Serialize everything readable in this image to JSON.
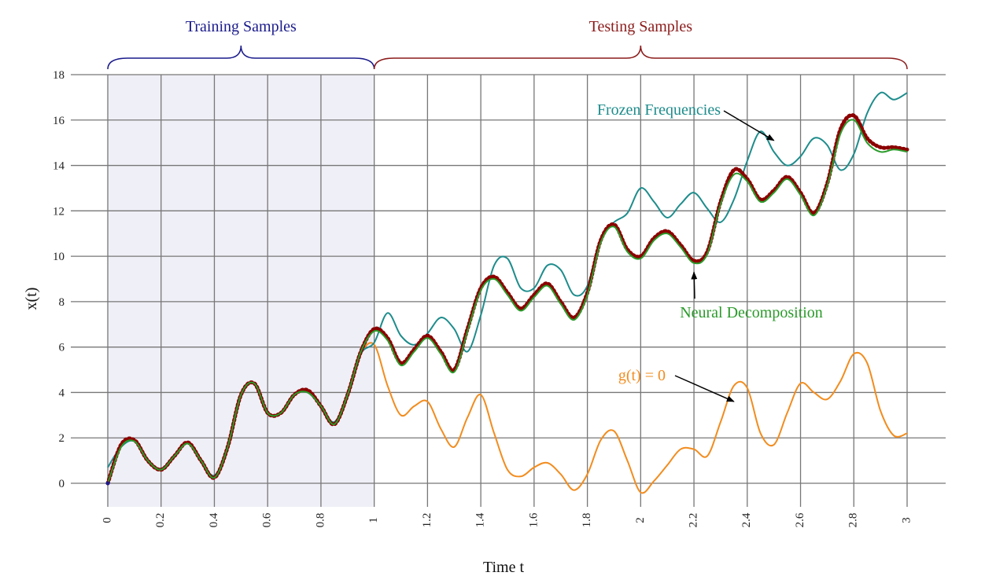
{
  "chart_data": {
    "type": "line",
    "xlabel": "Time t",
    "ylabel": "x(t)",
    "xlim": [
      0,
      3
    ],
    "ylim": [
      -1,
      18
    ],
    "x_ticks": [
      0,
      0.2,
      0.4,
      0.6,
      0.8,
      1,
      1.2,
      1.4,
      1.6,
      1.8,
      2,
      2.2,
      2.4,
      2.6,
      2.8,
      3
    ],
    "y_ticks": [
      0,
      2,
      4,
      6,
      8,
      10,
      12,
      14,
      16,
      18
    ],
    "grid": true,
    "regions": [
      {
        "label": "Training Samples",
        "x": [
          0,
          1
        ],
        "shaded": true,
        "color": "#1a1a8c"
      },
      {
        "label": "Testing Samples",
        "x": [
          1,
          3
        ],
        "shaded": false,
        "color": "#8b1a1a"
      }
    ],
    "annotations": [
      {
        "text": "Frozen Frequencies",
        "color": "#1e8c8c",
        "points_to": [
          2.5,
          15.1
        ]
      },
      {
        "text": "Neural Decomposition",
        "color": "#2a9a2a",
        "points_to": [
          2.2,
          9.3
        ]
      },
      {
        "text": "g(t) = 0",
        "color": "#f28c1e",
        "points_to": [
          2.35,
          3.6
        ]
      }
    ],
    "series": [
      {
        "role": "ground truth (dotted)",
        "color": "#8b0000",
        "x": [
          0,
          0.05,
          0.1,
          0.15,
          0.2,
          0.25,
          0.3,
          0.35,
          0.4,
          0.45,
          0.5,
          0.55,
          0.6,
          0.65,
          0.7,
          0.75,
          0.8,
          0.85,
          0.9,
          0.95,
          1,
          1.05,
          1.1,
          1.15,
          1.2,
          1.25,
          1.3,
          1.35,
          1.4,
          1.45,
          1.5,
          1.55,
          1.6,
          1.65,
          1.7,
          1.75,
          1.8,
          1.85,
          1.9,
          1.95,
          2,
          2.05,
          2.1,
          2.15,
          2.2,
          2.25,
          2.3,
          2.35,
          2.4,
          2.45,
          2.5,
          2.55,
          2.6,
          2.65,
          2.7,
          2.75,
          2.8,
          2.85,
          2.9,
          2.95,
          3
        ],
        "values": [
          0.0,
          1.7,
          1.9,
          1.0,
          0.6,
          1.2,
          1.8,
          1.0,
          0.25,
          1.6,
          3.9,
          4.4,
          3.1,
          3.1,
          3.9,
          4.1,
          3.4,
          2.6,
          3.9,
          5.8,
          6.8,
          6.4,
          5.3,
          5.9,
          6.5,
          5.8,
          5.0,
          6.8,
          8.6,
          9.1,
          8.4,
          7.7,
          8.3,
          8.8,
          8.0,
          7.3,
          8.4,
          10.7,
          11.4,
          10.3,
          10.0,
          10.8,
          11.1,
          10.5,
          9.8,
          10.2,
          12.4,
          13.8,
          13.4,
          12.5,
          12.9,
          13.5,
          12.8,
          11.9,
          13.2,
          15.6,
          16.2,
          15.2,
          14.8,
          14.8,
          14.7
        ]
      },
      {
        "name": "Neural Decomposition",
        "color": "#2a9a2a",
        "x": [
          0,
          0.05,
          0.1,
          0.15,
          0.2,
          0.25,
          0.3,
          0.35,
          0.4,
          0.45,
          0.5,
          0.55,
          0.6,
          0.65,
          0.7,
          0.75,
          0.8,
          0.85,
          0.9,
          0.95,
          1,
          1.05,
          1.1,
          1.15,
          1.2,
          1.25,
          1.3,
          1.35,
          1.4,
          1.45,
          1.5,
          1.55,
          1.6,
          1.65,
          1.7,
          1.75,
          1.8,
          1.85,
          1.9,
          1.95,
          2,
          2.05,
          2.1,
          2.15,
          2.2,
          2.25,
          2.3,
          2.35,
          2.4,
          2.45,
          2.5,
          2.55,
          2.6,
          2.65,
          2.7,
          2.75,
          2.8,
          2.85,
          2.9,
          2.95,
          3
        ],
        "values": [
          0.0,
          1.6,
          1.85,
          1.0,
          0.6,
          1.2,
          1.75,
          1.0,
          0.25,
          1.6,
          3.9,
          4.4,
          3.1,
          3.1,
          3.9,
          4.0,
          3.4,
          2.6,
          3.9,
          5.8,
          6.7,
          6.3,
          5.2,
          5.8,
          6.4,
          5.7,
          4.9,
          6.7,
          8.5,
          9.0,
          8.3,
          7.6,
          8.2,
          8.7,
          7.9,
          7.2,
          8.3,
          10.6,
          11.3,
          10.2,
          9.9,
          10.7,
          11.0,
          10.4,
          9.7,
          10.1,
          12.3,
          13.6,
          13.3,
          12.4,
          12.8,
          13.4,
          12.7,
          11.8,
          13.1,
          15.4,
          16.0,
          15.0,
          14.6,
          14.7,
          14.6
        ]
      },
      {
        "name": "Frozen Frequencies",
        "color": "#1e8c8c",
        "x": [
          0,
          0.05,
          0.1,
          0.15,
          0.2,
          0.25,
          0.3,
          0.35,
          0.4,
          0.45,
          0.5,
          0.55,
          0.6,
          0.65,
          0.7,
          0.75,
          0.8,
          0.85,
          0.9,
          0.95,
          1,
          1.05,
          1.1,
          1.15,
          1.2,
          1.25,
          1.3,
          1.35,
          1.4,
          1.45,
          1.5,
          1.55,
          1.6,
          1.65,
          1.7,
          1.75,
          1.8,
          1.85,
          1.9,
          1.95,
          2,
          2.05,
          2.1,
          2.15,
          2.2,
          2.25,
          2.3,
          2.35,
          2.4,
          2.45,
          2.5,
          2.55,
          2.6,
          2.65,
          2.7,
          2.75,
          2.8,
          2.85,
          2.9,
          2.95,
          3
        ],
        "values": [
          0.7,
          1.6,
          1.85,
          1.0,
          0.65,
          1.2,
          1.75,
          1.0,
          0.35,
          1.6,
          3.9,
          4.4,
          3.1,
          3.1,
          3.9,
          4.0,
          3.4,
          2.7,
          3.9,
          5.7,
          6.2,
          7.5,
          6.5,
          6.1,
          6.6,
          7.3,
          6.8,
          5.8,
          7.4,
          9.6,
          9.9,
          8.6,
          8.6,
          9.6,
          9.4,
          8.3,
          8.7,
          10.8,
          11.5,
          11.9,
          13.0,
          12.4,
          11.7,
          12.3,
          12.8,
          12.1,
          11.5,
          12.5,
          14.2,
          15.5,
          14.6,
          14.0,
          14.4,
          15.2,
          14.9,
          13.8,
          14.5,
          16.3,
          17.2,
          16.9,
          17.2
        ]
      },
      {
        "name": "g(t) = 0",
        "color": "#f28c1e",
        "x": [
          0,
          0.05,
          0.1,
          0.15,
          0.2,
          0.25,
          0.3,
          0.35,
          0.4,
          0.45,
          0.5,
          0.55,
          0.6,
          0.65,
          0.7,
          0.75,
          0.8,
          0.85,
          0.9,
          0.95,
          1,
          1.05,
          1.1,
          1.15,
          1.2,
          1.25,
          1.3,
          1.35,
          1.4,
          1.45,
          1.5,
          1.55,
          1.6,
          1.65,
          1.7,
          1.75,
          1.8,
          1.85,
          1.9,
          1.95,
          2,
          2.05,
          2.1,
          2.15,
          2.2,
          2.25,
          2.3,
          2.35,
          2.4,
          2.45,
          2.5,
          2.55,
          2.6,
          2.65,
          2.7,
          2.75,
          2.8,
          2.85,
          2.9,
          2.95,
          3
        ],
        "values": [
          0.0,
          1.6,
          1.85,
          1.0,
          0.6,
          1.2,
          1.75,
          1.0,
          0.25,
          1.6,
          3.9,
          4.4,
          3.1,
          3.1,
          3.9,
          4.0,
          3.4,
          2.6,
          3.9,
          5.7,
          6.1,
          4.3,
          3.0,
          3.4,
          3.6,
          2.4,
          1.6,
          2.9,
          3.9,
          2.2,
          0.6,
          0.3,
          0.7,
          0.9,
          0.4,
          -0.3,
          0.4,
          1.9,
          2.3,
          1.0,
          -0.4,
          0.1,
          0.8,
          1.5,
          1.5,
          1.2,
          2.7,
          4.3,
          4.2,
          2.2,
          1.7,
          3.1,
          4.4,
          4.0,
          3.7,
          4.5,
          5.7,
          5.3,
          3.2,
          2.1,
          2.2
        ]
      }
    ]
  }
}
